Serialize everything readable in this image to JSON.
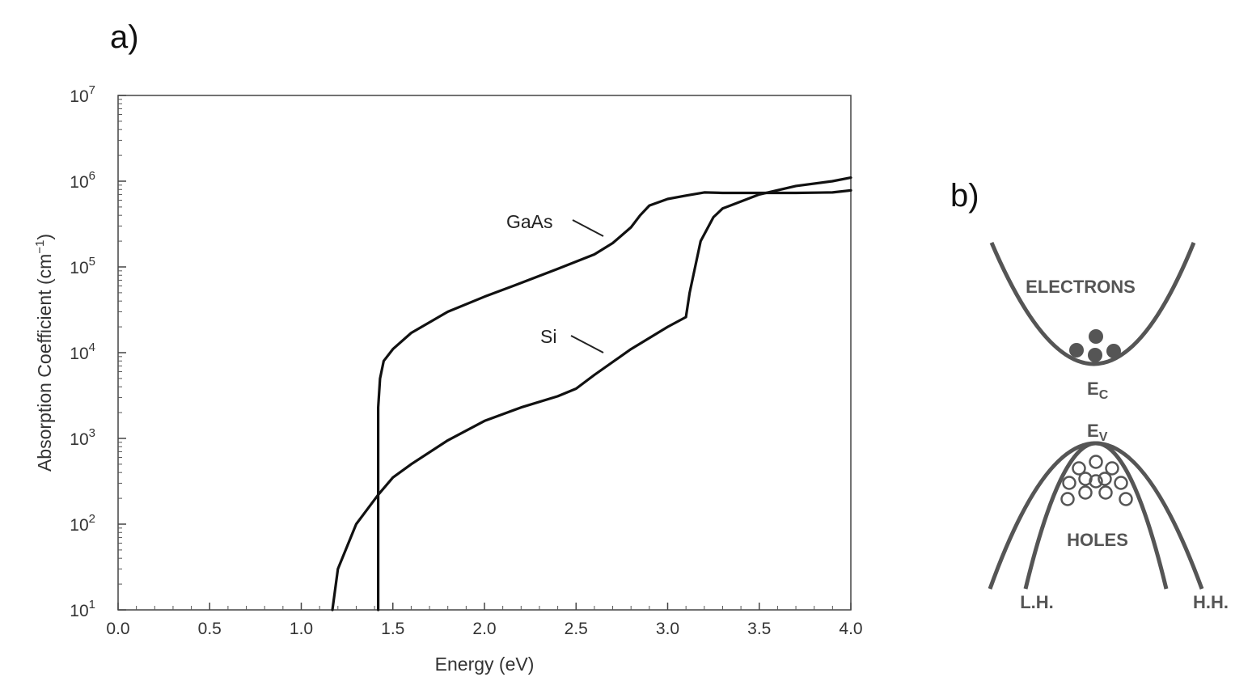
{
  "panels": {
    "a": "a)",
    "b": "b)"
  },
  "chart_data": {
    "type": "line",
    "xlabel": "Energy (eV)",
    "ylabel_prefix": "Absorption Coefficient (cm",
    "ylabel_sup": "−1",
    "ylabel_suffix": ")",
    "xlim": [
      0.0,
      4.0
    ],
    "ylim": [
      10,
      10000000
    ],
    "yscale": "log",
    "xticks": [
      "0.0",
      "0.5",
      "1.0",
      "1.5",
      "2.0",
      "2.5",
      "3.0",
      "3.5",
      "4.0"
    ],
    "yticks": [
      {
        "base": "10",
        "exp": "1"
      },
      {
        "base": "10",
        "exp": "2"
      },
      {
        "base": "10",
        "exp": "3"
      },
      {
        "base": "10",
        "exp": "4"
      },
      {
        "base": "10",
        "exp": "5"
      },
      {
        "base": "10",
        "exp": "6"
      },
      {
        "base": "10",
        "exp": "7"
      }
    ],
    "series": [
      {
        "name": "GaAs",
        "x": [
          1.42,
          1.42,
          1.43,
          1.45,
          1.5,
          1.6,
          1.8,
          2.0,
          2.2,
          2.4,
          2.6,
          2.7,
          2.8,
          2.85,
          2.9,
          3.0,
          3.1,
          3.2,
          3.3,
          3.5,
          3.7,
          3.9,
          4.0
        ],
        "y": [
          10,
          2300,
          5000,
          8000,
          11000,
          17000,
          30000,
          45000,
          65000,
          95000,
          140000,
          190000,
          290000,
          400000,
          520000,
          620000,
          680000,
          740000,
          730000,
          730000,
          730000,
          740000,
          780000
        ]
      },
      {
        "name": "Si",
        "x": [
          1.17,
          1.2,
          1.3,
          1.42,
          1.5,
          1.6,
          1.8,
          2.0,
          2.2,
          2.4,
          2.5,
          2.6,
          2.8,
          3.0,
          3.1,
          3.12,
          3.18,
          3.25,
          3.3,
          3.5,
          3.7,
          3.9,
          4.0
        ],
        "y": [
          10,
          30,
          100,
          220,
          350,
          500,
          950,
          1600,
          2300,
          3100,
          3800,
          5500,
          11000,
          20000,
          26000,
          50000,
          200000,
          380000,
          480000,
          700000,
          880000,
          1000000,
          1100000
        ]
      }
    ]
  },
  "band_diagram": {
    "electrons": "ELECTRONS",
    "holes": "HOLES",
    "ec_base": "E",
    "ec_sub": "C",
    "ev_base": "E",
    "ev_sub": "V",
    "light_hole": "L.H.",
    "heavy_hole": "H.H."
  }
}
